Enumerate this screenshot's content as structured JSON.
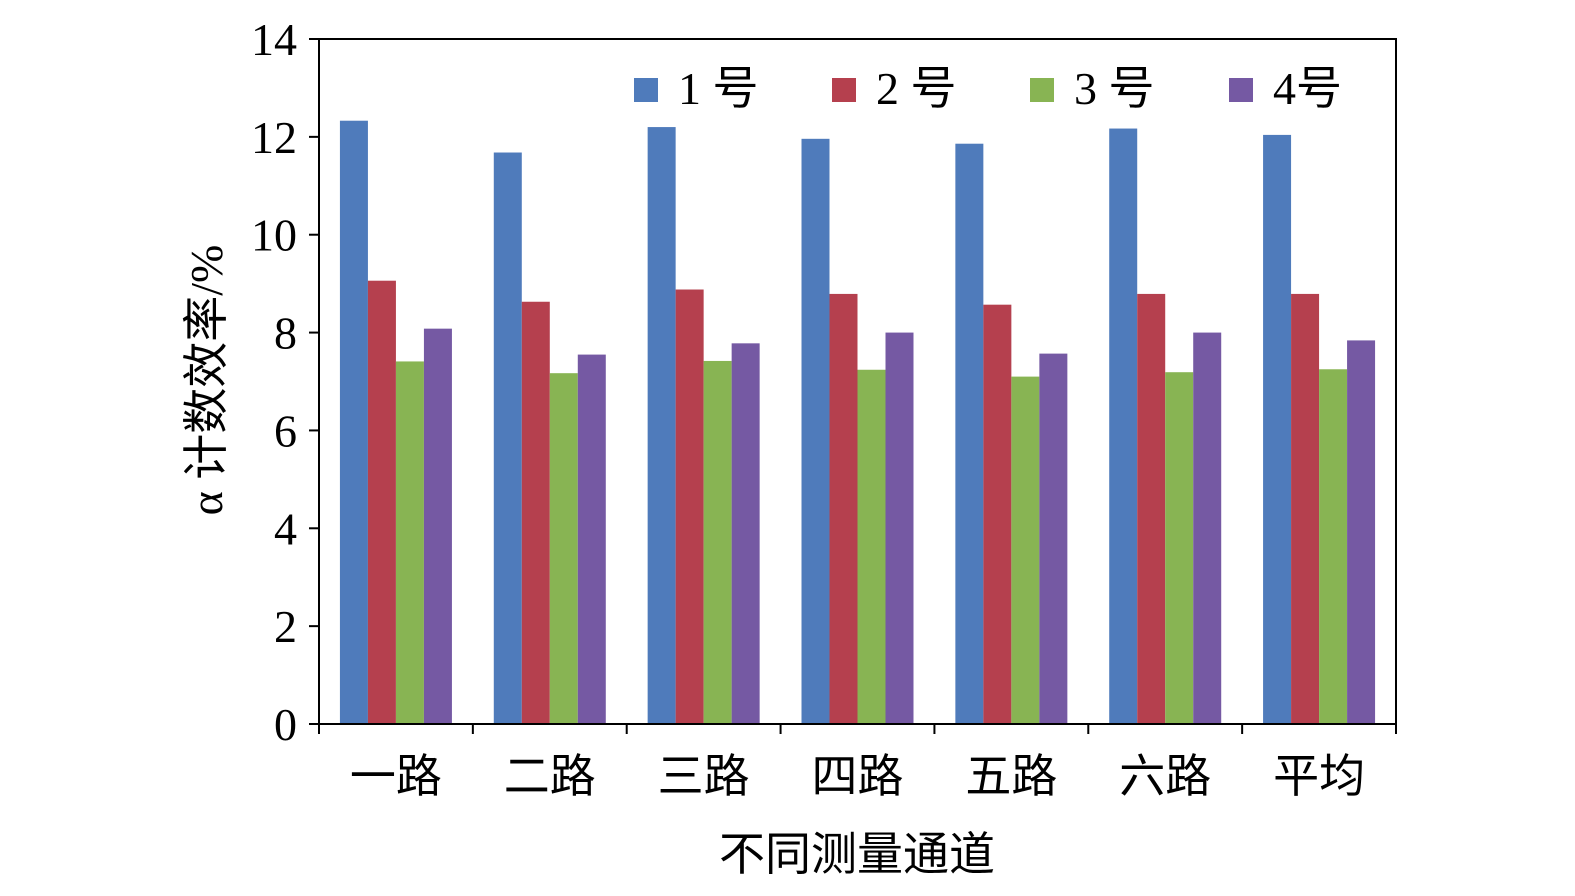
{
  "chart_data": {
    "type": "bar",
    "title": "",
    "xlabel": "不同测量通道",
    "ylabel": "α 计数效率/%",
    "ylim": [
      0,
      14
    ],
    "yticks": [
      "0",
      "2",
      "4",
      "6",
      "8",
      "10",
      "12",
      "14"
    ],
    "grid": false,
    "legend_position": "top-right",
    "categories": [
      "一路",
      "二路",
      "三路",
      "四路",
      "五路",
      "六路",
      "平均"
    ],
    "series": [
      {
        "name": "1 号",
        "color": "#4f7bbb",
        "values": [
          12.33,
          11.68,
          12.2,
          11.96,
          11.86,
          12.17,
          12.04
        ]
      },
      {
        "name": "2 号",
        "color": "#b5404e",
        "values": [
          9.06,
          8.63,
          8.88,
          8.79,
          8.57,
          8.79,
          8.79
        ]
      },
      {
        "name": "3 号",
        "color": "#88b453",
        "values": [
          7.41,
          7.17,
          7.42,
          7.24,
          7.1,
          7.19,
          7.25
        ]
      },
      {
        "name": "4号",
        "color": "#7559a3",
        "values": [
          8.08,
          7.55,
          7.78,
          8.0,
          7.57,
          8.0,
          7.84
        ]
      }
    ]
  }
}
